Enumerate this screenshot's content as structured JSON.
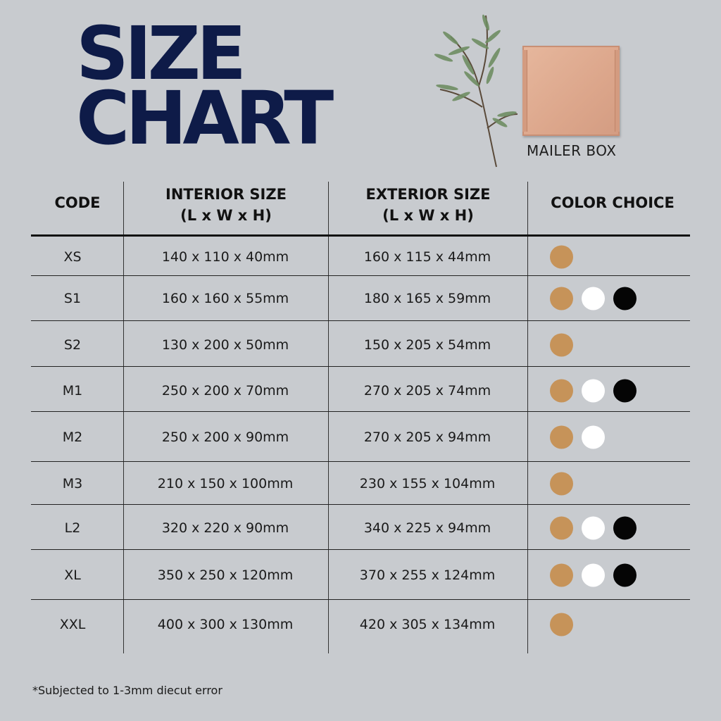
{
  "title": {
    "line1": "SIZE",
    "line2": "CHART"
  },
  "image_label": "MAILER BOX",
  "headers": {
    "code": "CODE",
    "interior_line1": "INTERIOR SIZE",
    "interior_line2": "(L x W x H)",
    "exterior_line1": "EXTERIOR SIZE",
    "exterior_line2": "(L x W x H)",
    "color": "COLOR CHOICE"
  },
  "colors": {
    "kraft": "#c69359",
    "white": "#ffffff",
    "black": "#050505",
    "title": "#0e1b48",
    "background": "#c8cbcf"
  },
  "rows": [
    {
      "code": "XS",
      "interior": "140 x 110 x 40mm",
      "exterior": "160 x 115 x 44mm",
      "colors": [
        "kraft"
      ]
    },
    {
      "code": "S1",
      "interior": "160 x 160 x 55mm",
      "exterior": "180 x 165 x 59mm",
      "colors": [
        "kraft",
        "white",
        "black"
      ]
    },
    {
      "code": "S2",
      "interior": "130 x 200 x 50mm",
      "exterior": "150 x 205 x 54mm",
      "colors": [
        "kraft"
      ]
    },
    {
      "code": "M1",
      "interior": "250 x 200 x 70mm",
      "exterior": "270 x 205 x 74mm",
      "colors": [
        "kraft",
        "white",
        "black"
      ]
    },
    {
      "code": "M2",
      "interior": "250 x 200 x 90mm",
      "exterior": "270 x 205 x 94mm",
      "colors": [
        "kraft",
        "white"
      ]
    },
    {
      "code": "M3",
      "interior": "210 x 150 x 100mm",
      "exterior": "230 x 155 x 104mm",
      "colors": [
        "kraft"
      ]
    },
    {
      "code": "L2",
      "interior": "320 x 220 x 90mm",
      "exterior": "340 x 225 x 94mm",
      "colors": [
        "kraft",
        "white",
        "black"
      ]
    },
    {
      "code": "XL",
      "interior": "350 x 250 x 120mm",
      "exterior": "370 x 255 x 124mm",
      "colors": [
        "kraft",
        "white",
        "black"
      ]
    },
    {
      "code": "XXL",
      "interior": "400 x 300 x 130mm",
      "exterior": "420 x 305 x 134mm",
      "colors": [
        "kraft"
      ]
    }
  ],
  "footnote": "*Subjected to 1-3mm diecut error"
}
